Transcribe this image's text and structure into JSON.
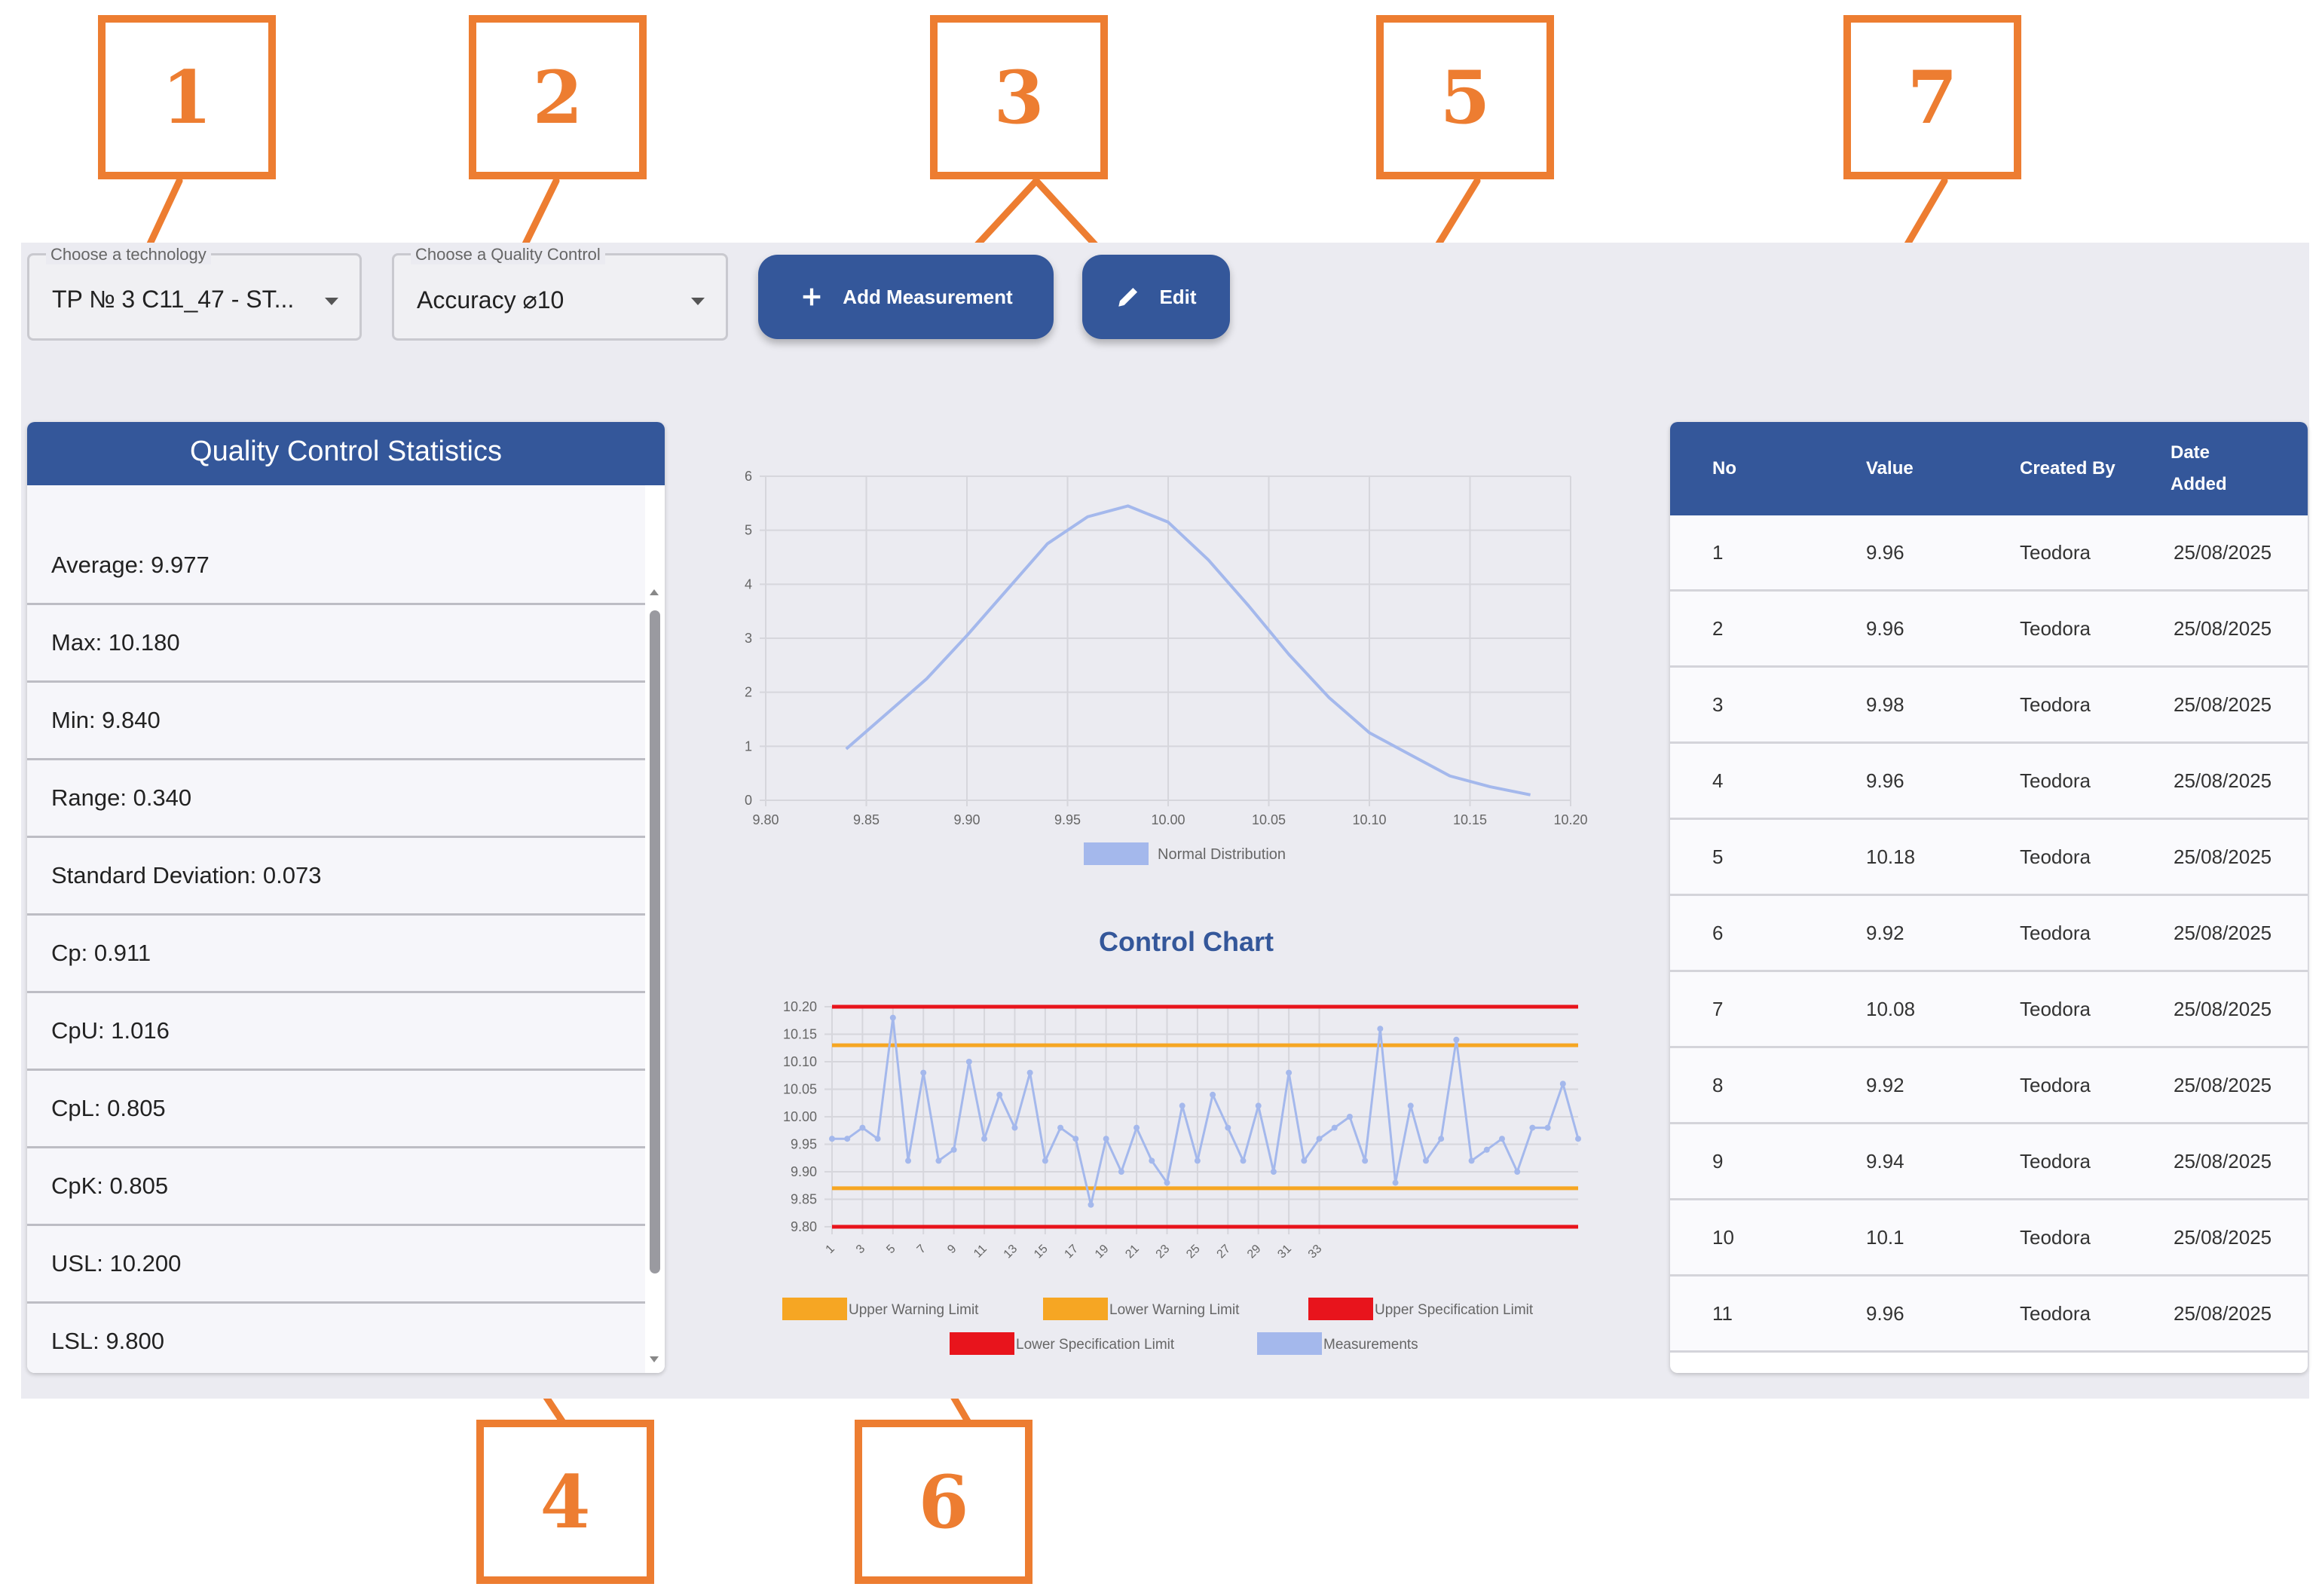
{
  "callouts": [
    "1",
    "2",
    "3",
    "4",
    "5",
    "6",
    "7"
  ],
  "controls": {
    "technology": {
      "legend": "Choose a technology",
      "value": "TP № 3 C11_47 - ST..."
    },
    "quality_control": {
      "legend": "Choose a Quality Control",
      "value": "Accuracy ⌀10"
    },
    "add_measurement_label": "Add Measurement",
    "edit_label": "Edit"
  },
  "stats": {
    "title": "Quality Control Statistics",
    "items": [
      "Average: 9.977",
      "Max: 10.180",
      "Min: 9.840",
      "Range: 0.340",
      "Standard Deviation: 0.073",
      "Cp: 0.911",
      "CpU: 1.016",
      "CpL: 0.805",
      "CpK: 0.805",
      "USL: 10.200",
      "LSL: 9.800"
    ]
  },
  "chart_data": [
    {
      "type": "line",
      "title": "",
      "x_ticks": [
        "9.80",
        "9.85",
        "9.90",
        "9.95",
        "10.00",
        "10.05",
        "10.10",
        "10.15",
        "10.20"
      ],
      "y_ticks": [
        "0",
        "1",
        "2",
        "3",
        "4",
        "5",
        "6"
      ],
      "xlim": [
        9.8,
        10.2
      ],
      "ylim": [
        0,
        6
      ],
      "grid": true,
      "legend_position": "bottom",
      "series": [
        {
          "name": "Normal Distribution",
          "color": "#a4b8ec",
          "x": [
            9.84,
            9.86,
            9.88,
            9.9,
            9.92,
            9.94,
            9.96,
            9.98,
            10.0,
            10.02,
            10.04,
            10.06,
            10.08,
            10.1,
            10.12,
            10.14,
            10.16,
            10.18
          ],
          "y": [
            0.95,
            1.6,
            2.25,
            3.05,
            3.9,
            4.75,
            5.25,
            5.45,
            5.15,
            4.45,
            3.6,
            2.7,
            1.9,
            1.25,
            0.85,
            0.45,
            0.25,
            0.1
          ]
        }
      ]
    },
    {
      "type": "line",
      "title": "Control Chart",
      "y_ticks": [
        "9.80",
        "9.85",
        "9.90",
        "9.95",
        "10.00",
        "10.05",
        "10.10",
        "10.15",
        "10.20"
      ],
      "x_ticks": [
        "1",
        "3",
        "5",
        "7",
        "9",
        "11",
        "13",
        "15",
        "17",
        "19",
        "21",
        "23",
        "25",
        "27",
        "29",
        "31",
        "33"
      ],
      "ylim": [
        9.8,
        10.2
      ],
      "grid": true,
      "legend_position": "bottom",
      "limits": [
        {
          "name": "Upper Warning Limit",
          "value": 10.13,
          "color": "#f6a623"
        },
        {
          "name": "Lower Warning Limit",
          "value": 9.87,
          "color": "#f6a623"
        },
        {
          "name": "Upper Specification Limit",
          "value": 10.2,
          "color": "#e8141c"
        },
        {
          "name": "Lower Specification Limit",
          "value": 9.8,
          "color": "#e8141c"
        }
      ],
      "series": [
        {
          "name": "Measurements",
          "color": "#a4b8ec",
          "values": [
            9.96,
            9.96,
            9.98,
            9.96,
            10.18,
            9.92,
            10.08,
            9.92,
            9.94,
            10.1,
            9.96,
            10.04,
            9.98,
            10.08,
            9.92,
            9.98,
            9.96,
            9.84,
            9.96,
            9.9,
            9.98,
            9.92,
            9.88,
            10.02,
            9.92,
            10.04,
            9.98,
            9.92,
            10.02,
            9.9,
            10.08,
            9.92,
            9.96,
            9.98,
            10.0,
            9.92,
            10.16,
            9.88,
            10.02,
            9.92,
            9.96,
            10.14,
            9.92,
            9.94,
            9.96,
            9.9,
            9.98,
            9.98,
            10.06,
            9.96
          ]
        }
      ]
    }
  ],
  "table": {
    "columns": [
      "No",
      "Value",
      "Created By",
      "Date Added"
    ],
    "rows": [
      [
        "1",
        "9.96",
        "Teodora",
        "25/08/2025"
      ],
      [
        "2",
        "9.96",
        "Teodora",
        "25/08/2025"
      ],
      [
        "3",
        "9.98",
        "Teodora",
        "25/08/2025"
      ],
      [
        "4",
        "9.96",
        "Teodora",
        "25/08/2025"
      ],
      [
        "5",
        "10.18",
        "Teodora",
        "25/08/2025"
      ],
      [
        "6",
        "9.92",
        "Teodora",
        "25/08/2025"
      ],
      [
        "7",
        "10.08",
        "Teodora",
        "25/08/2025"
      ],
      [
        "8",
        "9.92",
        "Teodora",
        "25/08/2025"
      ],
      [
        "9",
        "9.94",
        "Teodora",
        "25/08/2025"
      ],
      [
        "10",
        "10.1",
        "Teodora",
        "25/08/2025"
      ],
      [
        "11",
        "9.96",
        "Teodora",
        "25/08/2025"
      ]
    ]
  }
}
